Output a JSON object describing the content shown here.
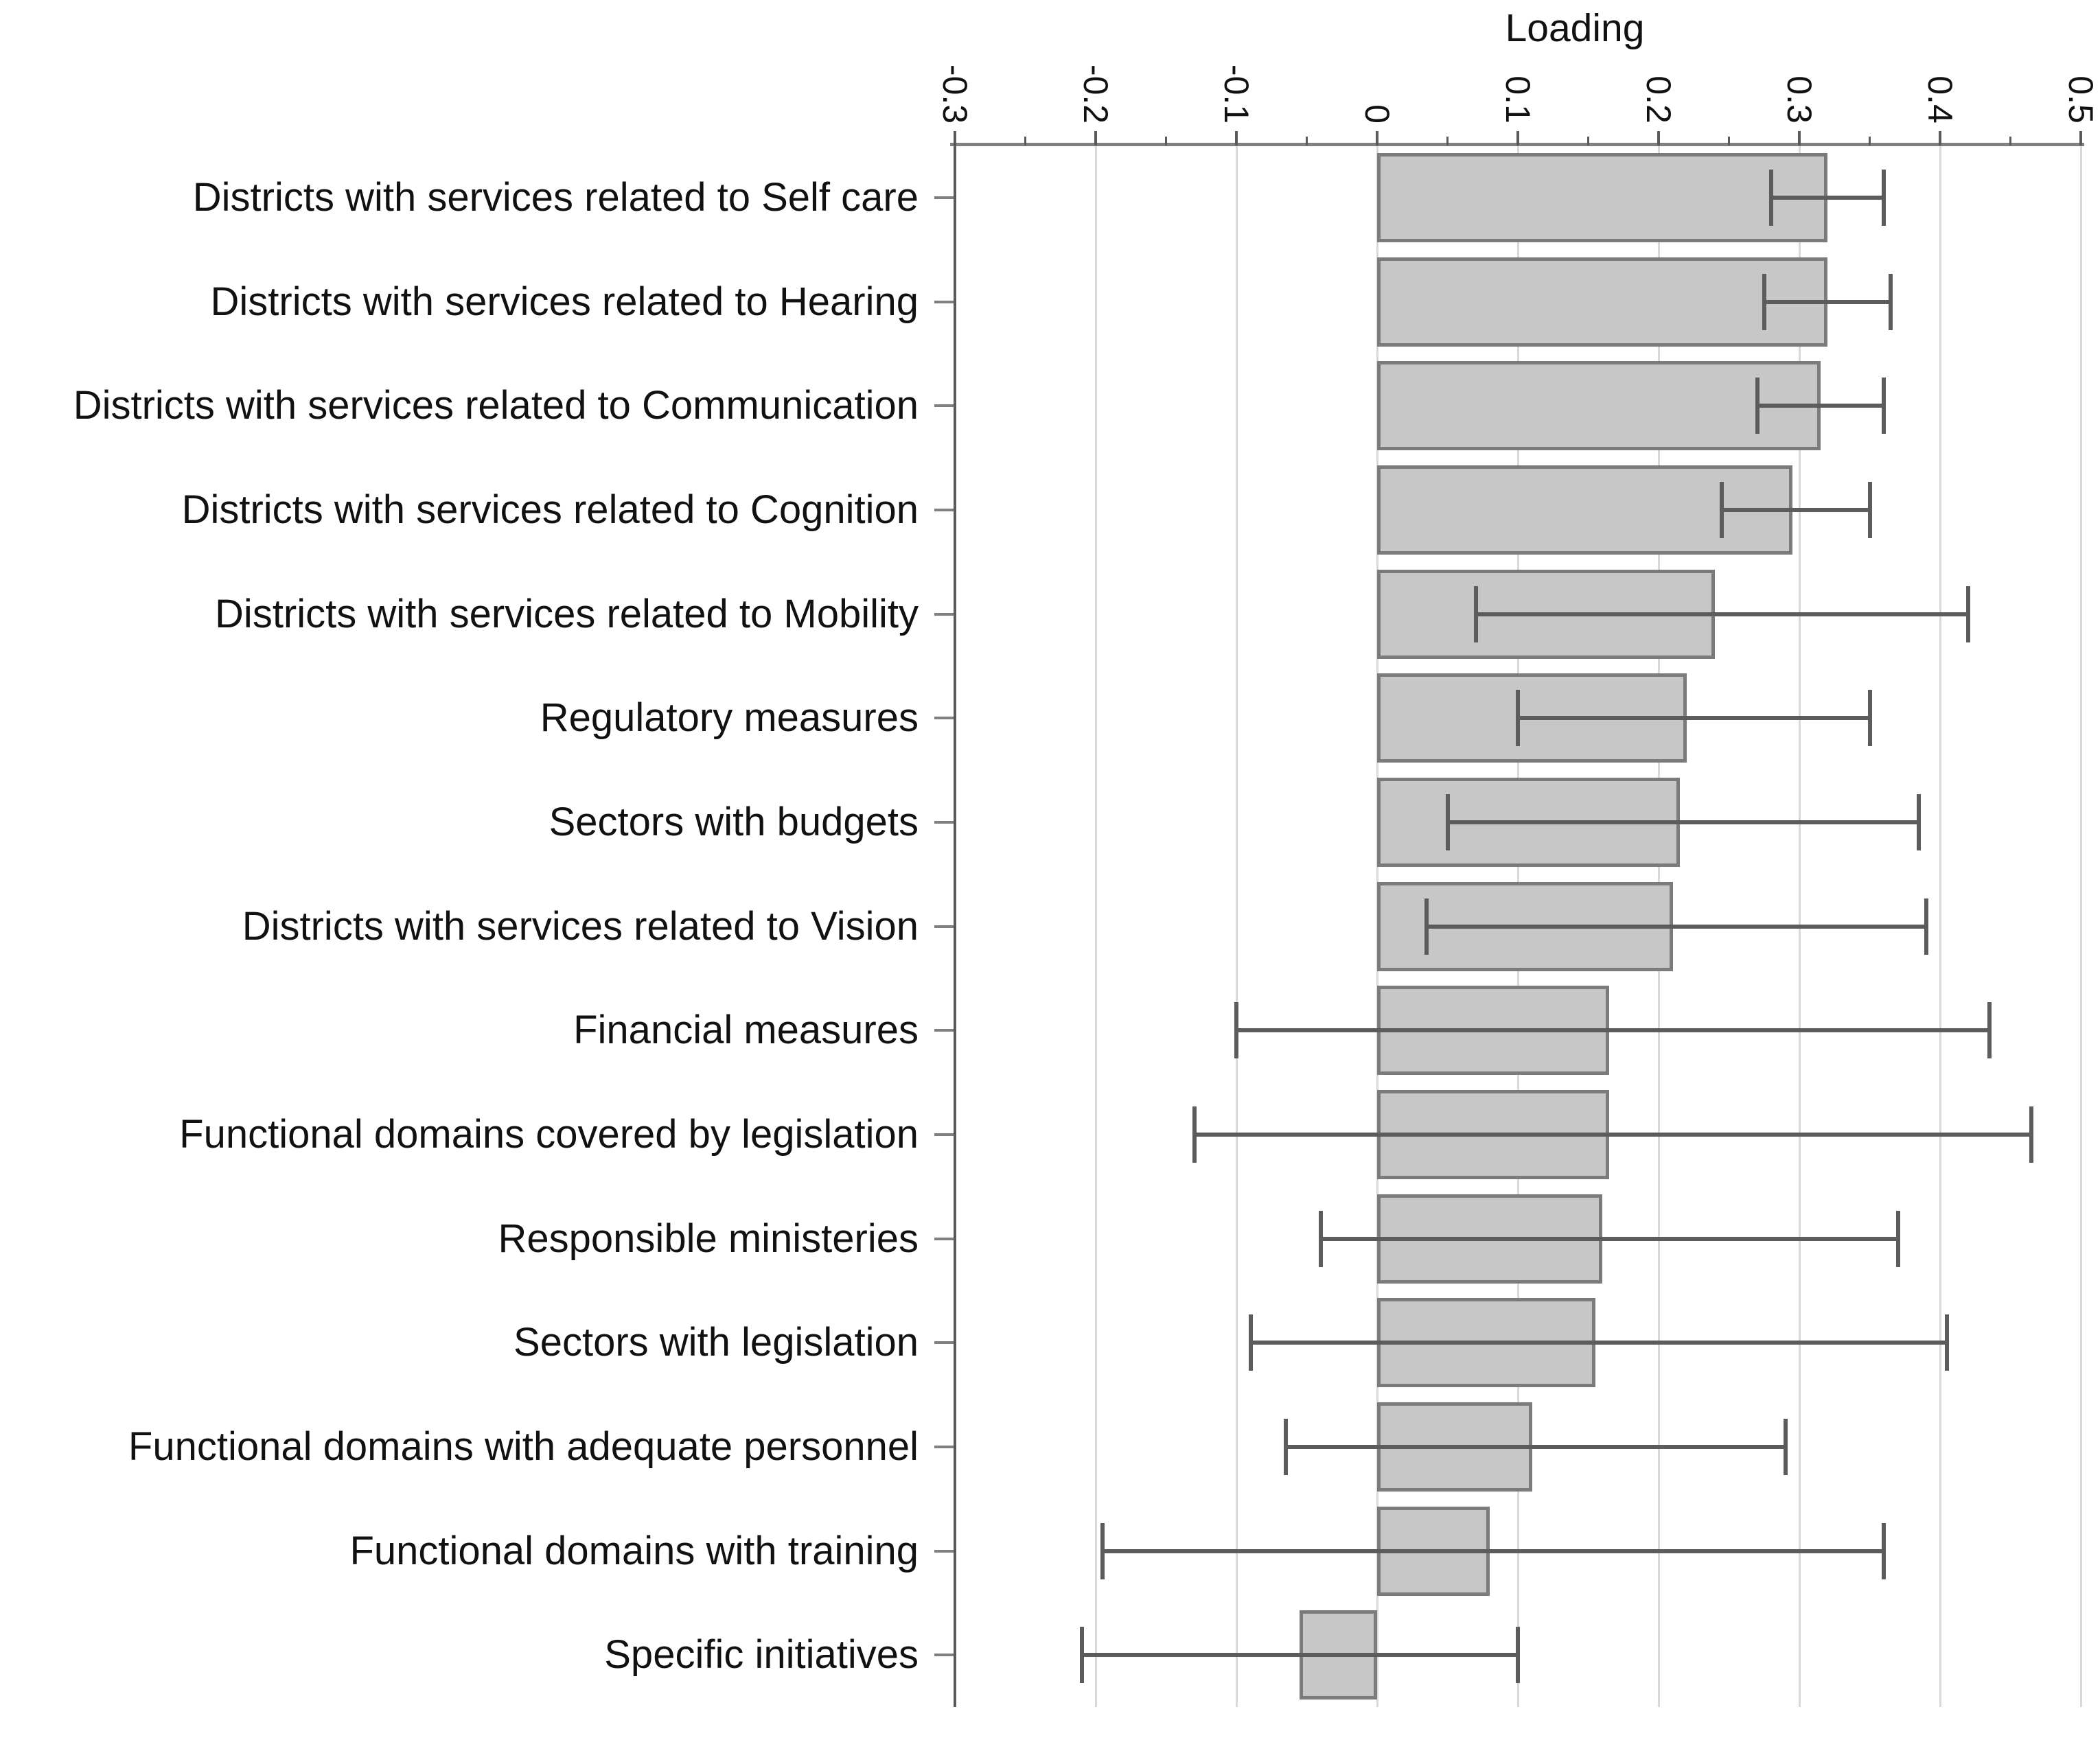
{
  "chart_data": {
    "type": "bar",
    "orientation": "horizontal",
    "title": "",
    "xlabel": "Loading",
    "ylabel": "",
    "legend": "none",
    "grid": "vertical major gridlines",
    "xlim": [
      -0.3,
      0.5
    ],
    "x_major_ticks": [
      -0.3,
      -0.2,
      -0.1,
      0,
      0.1,
      0.2,
      0.3,
      0.4,
      0.5
    ],
    "x_tick_labels": [
      "-0.3",
      "-0.2",
      "-0.1",
      "0",
      "0.1",
      "0.2",
      "0.3",
      "0.4",
      "0.5"
    ],
    "x_minor_ticks": [
      -0.25,
      -0.15,
      -0.05,
      0.05,
      0.15,
      0.25,
      0.35,
      0.45
    ],
    "x_tick_label_rotation_deg": 90,
    "categories": [
      "Districts with services related to Self care",
      "Districts with services related to Hearing",
      "Districts with services related to Communication",
      "Districts with services related to Cognition",
      "Districts with services related to Mobility",
      "Regulatory measures",
      "Sectors with budgets",
      "Districts with services related to Vision",
      "Financial measures",
      "Functional domains covered by legislation",
      "Responsible ministeries",
      "Sectors with legislation",
      "Functional domains with adequate personnel",
      "Functional domains with training",
      "Specific initiatives"
    ],
    "values": [
      0.32,
      0.32,
      0.315,
      0.295,
      0.24,
      0.22,
      0.215,
      0.21,
      0.165,
      0.165,
      0.16,
      0.155,
      0.11,
      0.08,
      -0.055
    ],
    "error_low": [
      0.28,
      0.275,
      0.27,
      0.245,
      0.07,
      0.1,
      0.05,
      0.035,
      -0.1,
      -0.13,
      -0.04,
      -0.09,
      -0.065,
      -0.195,
      -0.21
    ],
    "error_high": [
      0.36,
      0.365,
      0.36,
      0.35,
      0.42,
      0.35,
      0.385,
      0.39,
      0.435,
      0.465,
      0.37,
      0.405,
      0.29,
      0.36,
      0.1
    ],
    "colors": {
      "background": "#ffffff",
      "bar_fill": "#c7c7c7",
      "bar_border": "#7b7b7b",
      "error_bar": "#5c5c5c",
      "axis_line": "#808080",
      "y_axis_line": "#5a5a5a",
      "gridline": "#d9d9d9",
      "text": "#111111"
    }
  }
}
